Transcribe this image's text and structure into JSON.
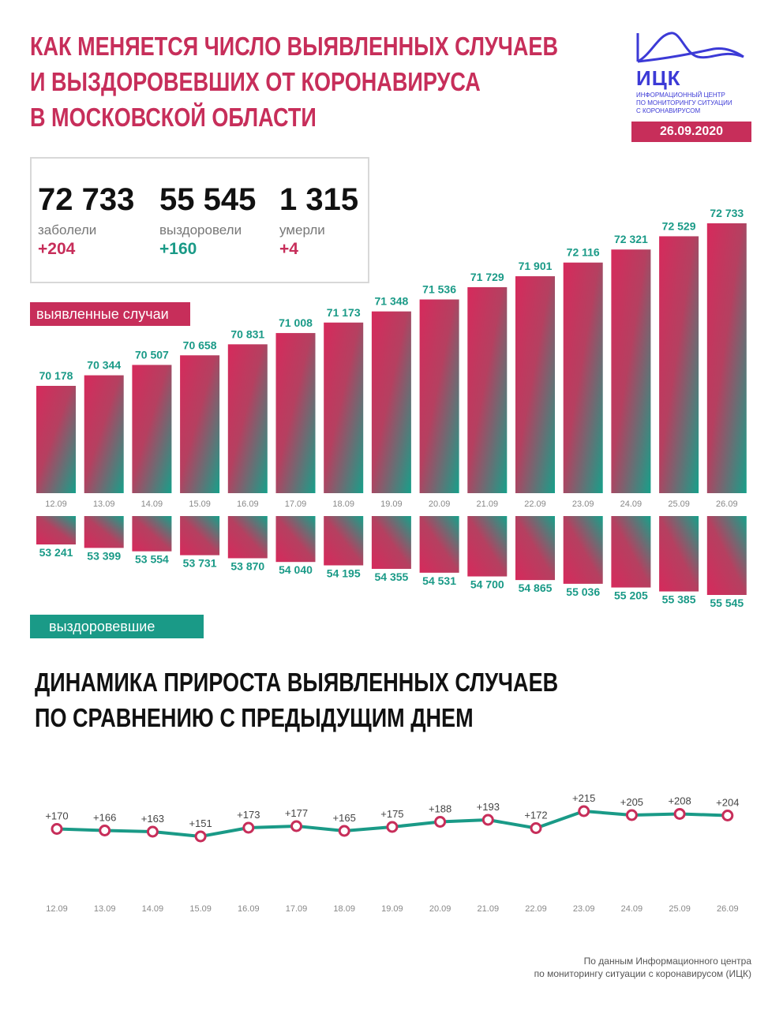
{
  "title_lines": [
    "КАК МЕНЯЕТСЯ ЧИСЛО ВЫЯВЛЕННЫХ СЛУЧАЕВ",
    "И ВЫЗДОРОВЕВШИХ ОТ КОРОНАВИРУСА",
    "В МОСКОВСКОЙ ОБЛАСТИ"
  ],
  "logo": {
    "abbr": "ИЦК",
    "subtitle_lines": [
      "ИНФОРМАЦИОННЫЙ ЦЕНТР",
      "ПО МОНИТОРИНГУ СИТУАЦИИ",
      "С КОРОНАВИРУСОМ"
    ],
    "icon": "mountain-wave-icon"
  },
  "date": "26.09.2020",
  "stats": [
    {
      "value": "72 733",
      "label": "заболели",
      "delta": "+204",
      "delta_color": "#c72e5a"
    },
    {
      "value": "55 545",
      "label": "выздоровели",
      "delta": "+160",
      "delta_color": "#1a9a87"
    },
    {
      "value": "1 315",
      "label": "умерли",
      "delta": "+4",
      "delta_color": "#c72e5a"
    }
  ],
  "labels": {
    "cases_tag": "выявленные случаи",
    "recovered_tag": "выздоровевшие"
  },
  "section2_title_lines": [
    "ДИНАМИКА ПРИРОСТА ВЫЯВЛЕННЫХ СЛУЧАЕВ",
    "ПО СРАВНЕНИЮ С ПРЕДЫДУЩИМ ДНЕМ"
  ],
  "source_lines": [
    "По данным Информационного центра",
    "по мониторингу ситуации с коронавирусом (ИЦК)"
  ],
  "colors": {
    "accent": "#c72e5a",
    "teal": "#1a9a87"
  },
  "chart_data": [
    {
      "type": "bar",
      "categories": [
        "12.09",
        "13.09",
        "14.09",
        "15.09",
        "16.09",
        "17.09",
        "18.09",
        "19.09",
        "20.09",
        "21.09",
        "22.09",
        "23.09",
        "24.09",
        "25.09",
        "26.09"
      ],
      "series": [
        {
          "name": "выявленные случаи",
          "values": [
            70178,
            70344,
            70507,
            70658,
            70831,
            71008,
            71173,
            71348,
            71536,
            71729,
            71901,
            72116,
            72321,
            72529,
            72733
          ],
          "labels": [
            "70 178",
            "70 344",
            "70 507",
            "70 658",
            "70 831",
            "71 008",
            "71 173",
            "71 348",
            "71 536",
            "71 729",
            "71 901",
            "72 116",
            "72 321",
            "72 529",
            "72 733"
          ]
        },
        {
          "name": "выздоровевшие",
          "values": [
            53241,
            53399,
            53554,
            53731,
            53870,
            54040,
            54195,
            54355,
            54531,
            54700,
            54865,
            55036,
            55205,
            55385,
            55545
          ],
          "labels": [
            "53 241",
            "53 399",
            "53 554",
            "53 731",
            "53 870",
            "54 040",
            "54 195",
            "54 355",
            "54 531",
            "54 700",
            "54 865",
            "55 036",
            "55 205",
            "55 385",
            "55 545"
          ]
        }
      ]
    },
    {
      "type": "line",
      "categories": [
        "12.09",
        "13.09",
        "14.09",
        "15.09",
        "16.09",
        "17.09",
        "18.09",
        "19.09",
        "20.09",
        "21.09",
        "22.09",
        "23.09",
        "24.09",
        "25.09",
        "26.09"
      ],
      "values": [
        170,
        166,
        163,
        151,
        173,
        177,
        165,
        175,
        188,
        193,
        172,
        215,
        205,
        208,
        204
      ],
      "labels": [
        "+170",
        "+166",
        "+163",
        "+151",
        "+173",
        "+177",
        "+165",
        "+175",
        "+188",
        "+193",
        "+172",
        "+215",
        "+205",
        "+208",
        "+204"
      ]
    }
  ]
}
